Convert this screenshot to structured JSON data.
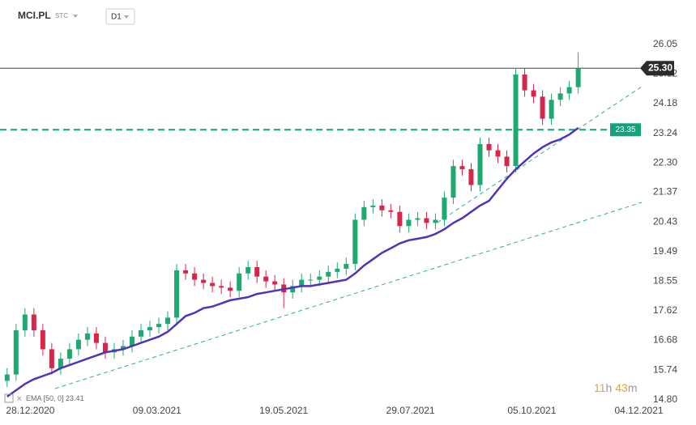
{
  "header": {
    "symbol": "MCI.PL",
    "market": "STC",
    "interval": "D1"
  },
  "chart_data": {
    "type": "candlestick",
    "x": [
      "2020-12-15",
      "2020-12-20",
      "2020-12-25",
      "2020-12-30",
      "2021-01-04",
      "2021-01-09",
      "2021-01-14",
      "2021-01-19",
      "2021-01-24",
      "2021-01-29",
      "2021-02-03",
      "2021-02-08",
      "2021-02-13",
      "2021-02-18",
      "2021-02-23",
      "2021-02-28",
      "2021-03-05",
      "2021-03-10",
      "2021-03-15",
      "2021-03-20",
      "2021-03-25",
      "2021-03-30",
      "2021-04-04",
      "2021-04-09",
      "2021-04-14",
      "2021-04-19",
      "2021-04-24",
      "2021-04-29",
      "2021-05-04",
      "2021-05-09",
      "2021-05-14",
      "2021-05-19",
      "2021-05-24",
      "2021-05-29",
      "2021-06-03",
      "2021-06-08",
      "2021-06-13",
      "2021-06-18",
      "2021-06-23",
      "2021-06-28",
      "2021-07-03",
      "2021-07-08",
      "2021-07-13",
      "2021-07-18",
      "2021-07-23",
      "2021-07-28",
      "2021-08-02",
      "2021-08-07",
      "2021-08-12",
      "2021-08-17",
      "2021-08-22",
      "2021-08-27",
      "2021-09-01",
      "2021-09-06",
      "2021-09-11",
      "2021-09-16",
      "2021-09-21",
      "2021-09-26",
      "2021-10-01",
      "2021-10-06",
      "2021-10-11",
      "2021-10-16",
      "2021-10-21",
      "2021-10-26",
      "2021-10-31"
    ],
    "open": [
      15.4,
      15.6,
      17.0,
      17.5,
      17.0,
      16.4,
      15.8,
      16.1,
      16.4,
      16.7,
      16.9,
      16.6,
      16.3,
      16.4,
      16.5,
      16.8,
      17.0,
      17.1,
      17.2,
      17.4,
      18.9,
      18.8,
      18.6,
      18.5,
      18.4,
      18.35,
      18.25,
      18.8,
      19.0,
      18.7,
      18.55,
      18.45,
      18.2,
      18.4,
      18.6,
      18.6,
      18.7,
      18.85,
      18.95,
      19.1,
      20.5,
      20.9,
      20.95,
      20.8,
      20.75,
      20.3,
      20.5,
      20.55,
      20.4,
      20.5,
      21.2,
      22.2,
      22.1,
      21.6,
      22.9,
      22.7,
      22.5,
      22.2,
      25.1,
      24.6,
      24.4,
      23.7,
      24.3,
      24.5,
      24.7
    ],
    "high": [
      15.8,
      17.2,
      17.7,
      17.7,
      17.2,
      16.6,
      16.3,
      16.6,
      16.9,
      17.1,
      17.1,
      16.8,
      16.6,
      16.7,
      17.0,
      17.2,
      17.3,
      17.4,
      17.6,
      19.1,
      19.1,
      19.0,
      18.8,
      18.7,
      18.6,
      18.55,
      19.0,
      19.2,
      19.2,
      18.9,
      18.75,
      18.65,
      18.6,
      18.8,
      18.8,
      18.9,
      19.05,
      19.15,
      19.3,
      20.7,
      21.1,
      21.15,
      21.15,
      21.0,
      20.95,
      20.7,
      20.75,
      20.75,
      20.7,
      21.4,
      22.4,
      22.4,
      22.3,
      23.1,
      23.1,
      22.9,
      22.7,
      25.3,
      25.3,
      24.8,
      24.6,
      24.5,
      24.7,
      24.9,
      25.8
    ],
    "low": [
      15.2,
      15.4,
      16.8,
      16.8,
      16.2,
      15.6,
      15.6,
      15.9,
      16.2,
      16.5,
      16.4,
      16.1,
      16.1,
      16.2,
      16.3,
      16.6,
      16.8,
      16.9,
      17.0,
      17.2,
      18.6,
      18.4,
      18.3,
      18.2,
      18.15,
      18.05,
      18.05,
      18.6,
      18.5,
      18.35,
      18.25,
      17.7,
      18.0,
      18.2,
      18.4,
      18.4,
      18.5,
      18.65,
      18.75,
      18.9,
      20.3,
      20.7,
      20.6,
      20.55,
      20.1,
      20.1,
      20.3,
      20.2,
      20.2,
      20.3,
      21.0,
      21.9,
      21.4,
      21.4,
      22.5,
      22.3,
      22.0,
      22.0,
      24.4,
      24.2,
      23.5,
      23.5,
      24.1,
      24.3,
      24.5
    ],
    "close": [
      15.6,
      17.0,
      17.5,
      17.0,
      16.4,
      15.8,
      16.1,
      16.4,
      16.7,
      16.9,
      16.6,
      16.3,
      16.4,
      16.5,
      16.8,
      17.0,
      17.1,
      17.2,
      17.4,
      18.9,
      18.8,
      18.6,
      18.5,
      18.4,
      18.35,
      18.25,
      18.8,
      19.0,
      18.7,
      18.55,
      18.45,
      18.2,
      18.4,
      18.6,
      18.6,
      18.7,
      18.85,
      18.95,
      19.1,
      20.5,
      20.9,
      20.95,
      20.8,
      20.75,
      20.3,
      20.5,
      20.55,
      20.4,
      20.5,
      21.2,
      22.2,
      22.1,
      21.6,
      22.9,
      22.7,
      22.5,
      22.2,
      25.1,
      24.6,
      24.4,
      23.7,
      24.3,
      24.5,
      24.7,
      25.3
    ],
    "up_color": "#1fa870",
    "down_color": "#d8254a",
    "xlim": [
      "2020-12-11",
      "2022-01-05"
    ],
    "xticks": [
      {
        "value": "2020-12-28",
        "label": "28.12.2020"
      },
      {
        "value": "2021-03-09",
        "label": "09.03.2021"
      },
      {
        "value": "2021-05-19",
        "label": "19.05.2021"
      },
      {
        "value": "2021-07-29",
        "label": "29.07.2021"
      },
      {
        "value": "2021-10-05",
        "label": "05.10.2021"
      },
      {
        "value": "2021-12-04",
        "label": "04.12.2021"
      }
    ],
    "ylim": [
      14.0,
      27.46
    ],
    "yticks": [
      {
        "value": 14.8,
        "label": "14.80"
      },
      15.74,
      16.68,
      17.62,
      18.55,
      19.49,
      20.43,
      21.37,
      {
        "value": 22.3,
        "label": "22.30"
      },
      23.24,
      24.18,
      25.12,
      26.05
    ],
    "ema": {
      "name": "EMA [50, 0]",
      "color": "#5232b8",
      "values": [
        14.9,
        15.1,
        15.3,
        15.45,
        15.55,
        15.65,
        15.8,
        15.9,
        16.0,
        16.1,
        16.2,
        16.3,
        16.35,
        16.4,
        16.5,
        16.6,
        16.7,
        16.8,
        16.95,
        17.2,
        17.45,
        17.55,
        17.7,
        17.75,
        17.85,
        17.95,
        18.0,
        18.05,
        18.15,
        18.2,
        18.25,
        18.3,
        18.35,
        18.4,
        18.4,
        18.45,
        18.5,
        18.55,
        18.6,
        18.8,
        19.05,
        19.25,
        19.45,
        19.6,
        19.75,
        19.85,
        19.9,
        19.95,
        20.05,
        20.2,
        20.4,
        20.55,
        20.75,
        20.95,
        21.1,
        21.45,
        21.8,
        22.1,
        22.35,
        22.6,
        22.8,
        22.95,
        23.05,
        23.2,
        23.41
      ]
    },
    "last_price": {
      "value": 25.3,
      "label": "25.30"
    },
    "level": {
      "value": 23.35,
      "label": "23.35",
      "color": "#12a37a"
    }
  },
  "countdown": {
    "hours": "11",
    "hours_unit": "h",
    "minutes": "43",
    "minutes_unit": "m"
  }
}
